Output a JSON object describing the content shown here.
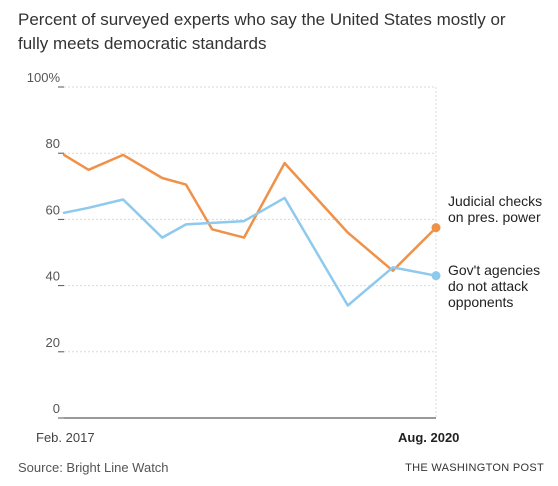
{
  "title": "Percent of surveyed experts who say the United States mostly or fully meets democratic standards",
  "source": "Source: Bright Line Watch",
  "credit": "THE WASHINGTON POST",
  "chart_data": {
    "type": "line",
    "y_ticks": [
      "100%",
      "80",
      "60",
      "40",
      "20",
      "0"
    ],
    "y_tick_values": [
      100,
      80,
      60,
      40,
      20,
      0
    ],
    "ylim": [
      0,
      100
    ],
    "x_start_label": "Feb. 2017",
    "x_end_label": "Aug. 2020",
    "grid": true,
    "series": [
      {
        "name": "Judicial checks on pres. power",
        "label_lines": [
          "Judicial checks",
          "on pres. power"
        ],
        "color": "#F0914A",
        "values": [
          79.5,
          75,
          79.5,
          72.5,
          70.5,
          57,
          54.5,
          77,
          56,
          44.5,
          57.5
        ]
      },
      {
        "name": "Gov't agencies do not attack opponents",
        "label_lines": [
          "Gov't agencies",
          "do not attack",
          "opponents"
        ],
        "color": "#8EC9EE",
        "values": [
          62,
          63.5,
          66,
          54.5,
          58.5,
          59.5,
          66.5,
          34,
          45.5,
          43
        ]
      }
    ]
  }
}
